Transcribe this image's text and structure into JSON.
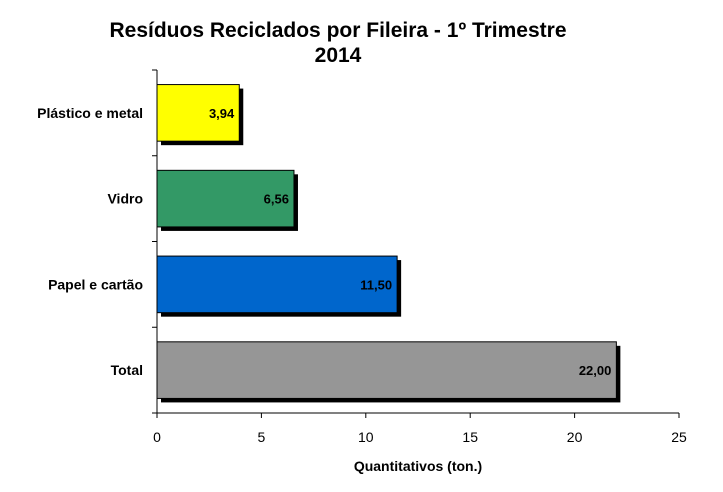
{
  "chart_data": {
    "type": "bar",
    "orientation": "horizontal",
    "title": "Resíduos Reciclados por Fileira - 1º Trimestre",
    "subtitle": "2014",
    "xlabel": "Quantitativos (ton.)",
    "ylabel": "",
    "categories": [
      "Plástico e metal",
      "Vidro",
      "Papel e cartão",
      "Total"
    ],
    "values": [
      3.94,
      6.56,
      11.5,
      22.0
    ],
    "value_labels": [
      "3,94",
      "6,56",
      "11,50",
      "22,00"
    ],
    "colors": [
      "#ffff00",
      "#339966",
      "#0066cc",
      "#969696"
    ],
    "xlim": [
      0,
      25
    ],
    "xticks": [
      0,
      5,
      10,
      15,
      20,
      25
    ],
    "grid": false,
    "legend": "none"
  }
}
